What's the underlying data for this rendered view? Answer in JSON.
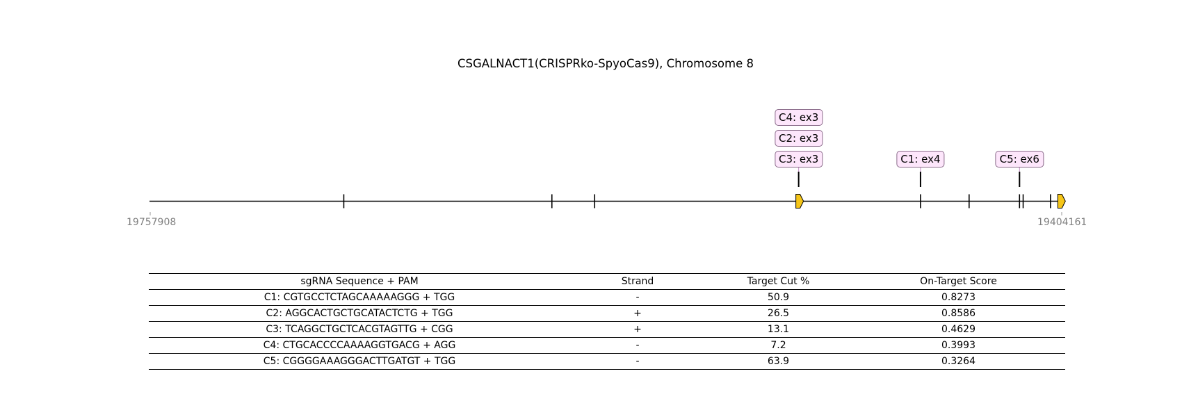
{
  "title": "CSGALNACT1(CRISPRko-SpyoCas9), Chromosome 8",
  "axis": {
    "start_label": "19757908",
    "end_label": "19404161",
    "start": 19757908,
    "end": 19404161
  },
  "colors": {
    "line": "#000000",
    "label_fill": "#fde6fb",
    "label_border": "#8a6b8a",
    "marker_fill": "#f5c518",
    "axis_label": "#7f7f7f"
  },
  "exon_fraction_positions": [
    0.2124,
    0.4407,
    0.4876,
    0.7114,
    0.8451,
    0.8984,
    0.9537,
    0.9577,
    0.9877
  ],
  "gene_direction_markers": [
    0.7114,
    0.9987
  ],
  "guides": [
    {
      "label": "C3: ex3",
      "pos": 0.7114,
      "stack": 0
    },
    {
      "label": "C2: ex3",
      "pos": 0.7114,
      "stack": 1
    },
    {
      "label": "C4: ex3",
      "pos": 0.7114,
      "stack": 2
    },
    {
      "label": "C1: ex4",
      "pos": 0.8451,
      "stack": 0
    },
    {
      "label": "C5: ex6",
      "pos": 0.9537,
      "stack": 0
    }
  ],
  "table": {
    "headers": [
      "sgRNA Sequence + PAM",
      "Strand",
      "Target Cut %",
      "On-Target Score"
    ],
    "rows": [
      [
        "C1: CGTGCCTCTAGCAAAAAGGG + TGG",
        "-",
        "50.9",
        "0.8273"
      ],
      [
        "C2: AGGCACTGCTGCATACTCTG + TGG",
        "+",
        "26.5",
        "0.8586"
      ],
      [
        "C3: TCAGGCTGCTCACGTAGTTG + CGG",
        "+",
        "13.1",
        "0.4629"
      ],
      [
        "C4: CTGCACCCCAAAAGGTGACG + AGG",
        "-",
        "7.2",
        "0.3993"
      ],
      [
        "C5: CGGGGAAAGGGACTTGATGT + TGG",
        "-",
        "63.9",
        "0.3264"
      ]
    ]
  }
}
